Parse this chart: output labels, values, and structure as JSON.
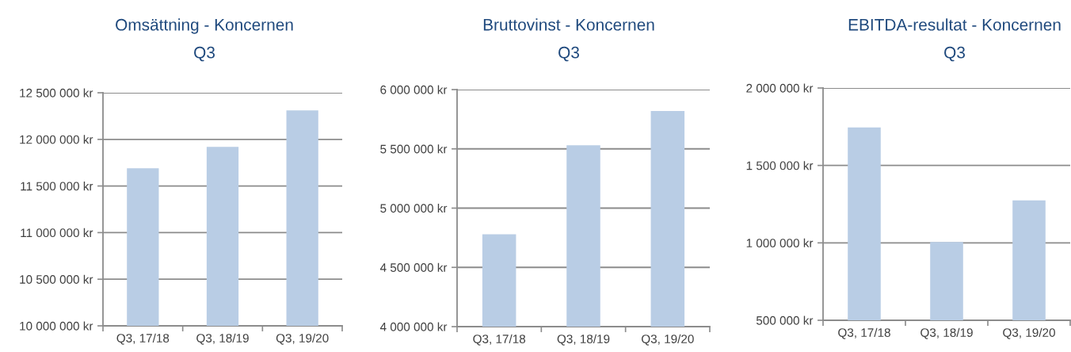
{
  "chart_data": [
    {
      "type": "bar",
      "title": "Omsättning - Koncernen",
      "subtitle": "Q3",
      "categories": [
        "Q3, 17/18",
        "Q3, 18/19",
        "Q3, 19/20"
      ],
      "values": [
        11690000,
        11920000,
        12310000
      ],
      "color": "#b9cde5",
      "ylim": [
        10000000,
        12500000
      ],
      "yticks": [
        {
          "value": 10000000,
          "label": "10 000 000 kr"
        },
        {
          "value": 10500000,
          "label": "10 500 000 kr"
        },
        {
          "value": 11000000,
          "label": "11 000 000 kr"
        },
        {
          "value": 11500000,
          "label": "11 500 000 kr"
        },
        {
          "value": 12000000,
          "label": "12 000 000 kr"
        },
        {
          "value": 12500000,
          "label": "12 500 000 kr"
        }
      ],
      "grid": "y"
    },
    {
      "type": "bar",
      "title": "Bruttovinst - Koncernen",
      "subtitle": "Q3",
      "categories": [
        "Q3, 17/18",
        "Q3, 18/19",
        "Q3, 19/20"
      ],
      "values": [
        4780000,
        5530000,
        5820000
      ],
      "color": "#b9cde5",
      "ylim": [
        4000000,
        6000000
      ],
      "yticks": [
        {
          "value": 4000000,
          "label": "4 000 000 kr"
        },
        {
          "value": 4500000,
          "label": "4 500 000 kr"
        },
        {
          "value": 5000000,
          "label": "5 000 000 kr"
        },
        {
          "value": 5500000,
          "label": "5 500 000 kr"
        },
        {
          "value": 6000000,
          "label": "6 000 000 kr"
        }
      ],
      "grid": "y"
    },
    {
      "type": "bar",
      "title": "EBITDA-resultat - Koncernen",
      "subtitle": "Q3",
      "categories": [
        "Q3, 17/18",
        "Q3, 18/19",
        "Q3, 19/20"
      ],
      "values": [
        1745000,
        1005000,
        1274000
      ],
      "color": "#b9cde5",
      "ylim": [
        500000,
        2000000
      ],
      "yticks": [
        {
          "value": 500000,
          "label": "500 000 kr"
        },
        {
          "value": 1000000,
          "label": "1 000 000 kr"
        },
        {
          "value": 1500000,
          "label": "1 500 000 kr"
        },
        {
          "value": 2000000,
          "label": "2 000 000 kr"
        }
      ],
      "grid": "y"
    }
  ]
}
